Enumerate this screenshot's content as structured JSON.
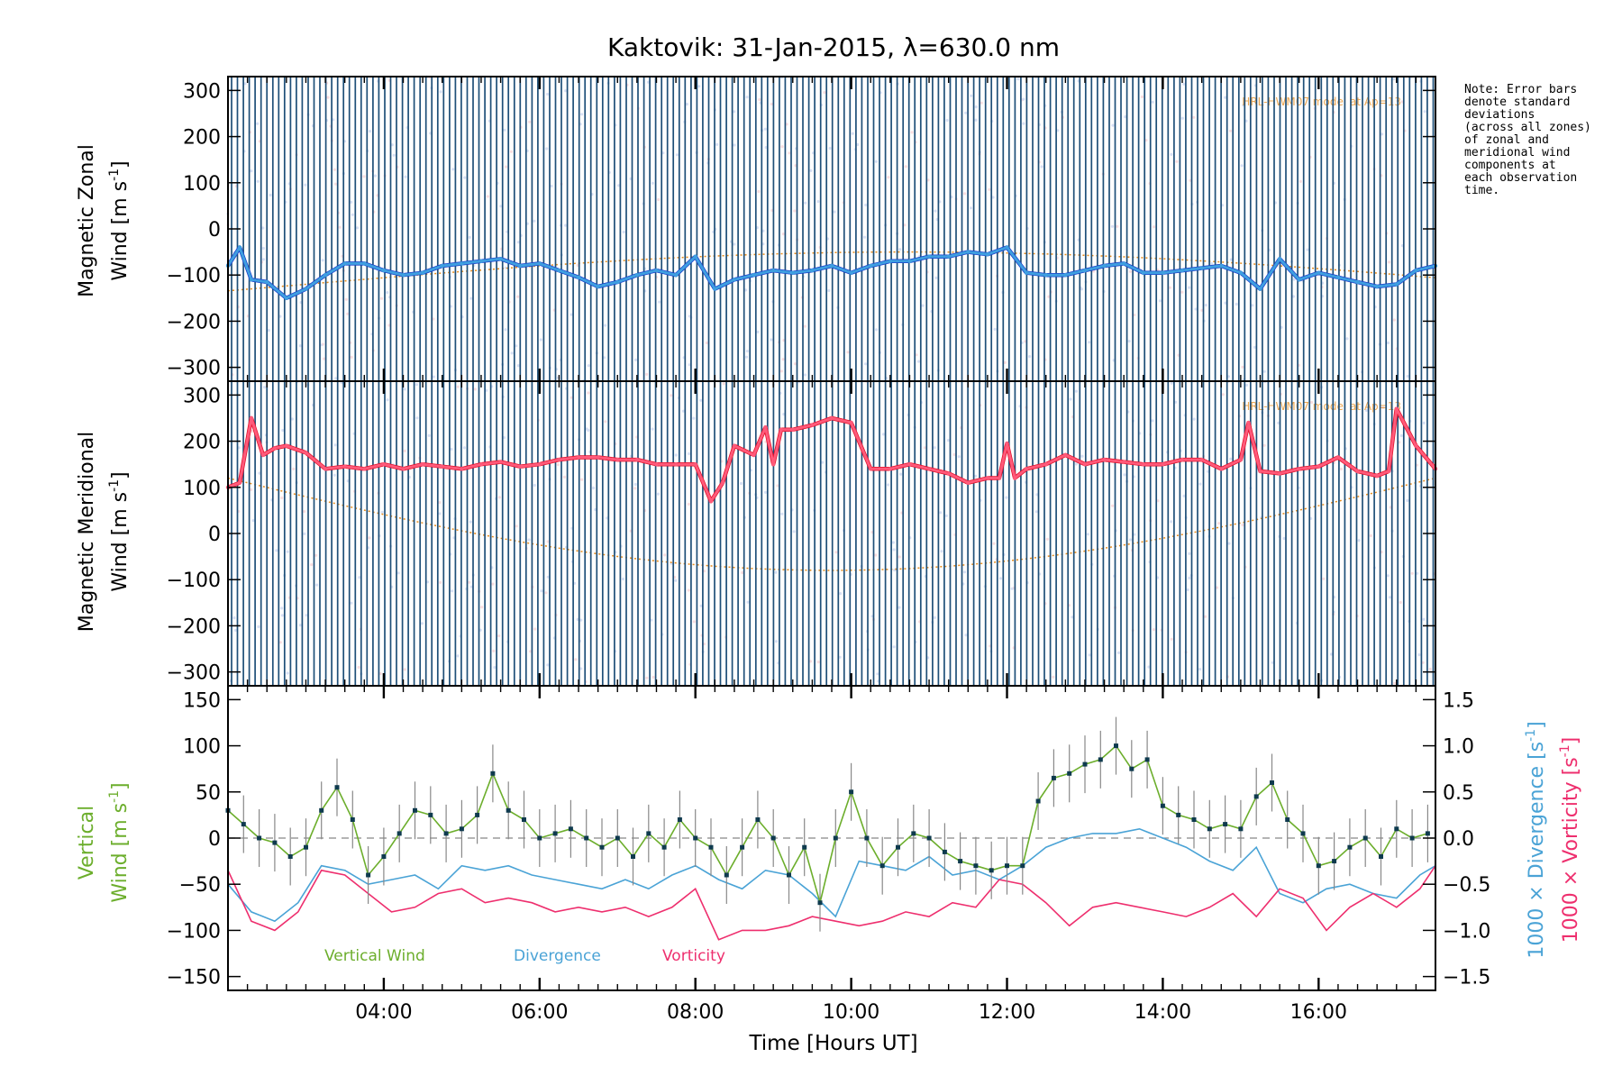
{
  "title": "Kaktovik: 31-Jan-2015, λ=630.0 nm",
  "note_lines": [
    "Note: Error bars",
    "denote standard",
    "deviations",
    "(across all zones)",
    "of zonal and",
    "meridional wind",
    "components at",
    "each observation",
    "time."
  ],
  "colors": {
    "zonal": "#3f9fe0",
    "zonal_dark": "#1a3fc8",
    "meridional": "#ff5a7a",
    "meridional_dark": "#e0102a",
    "errorbar": "#1e4f78",
    "vertical": "#6cae2c",
    "vertical_points": "#0e3a4e",
    "divergence": "#4aa3d6",
    "vorticity": "#ee2f6e",
    "hwm": "#e58a1a",
    "background_points": "#8fa8e0"
  },
  "chart_data": [
    {
      "type": "line",
      "panel": "zonal",
      "ylabel_line1": "Magnetic Zonal",
      "ylabel_line2": "Wind [m s",
      "ylabel_sup": "-1",
      "ylabel_end": "]",
      "hwm_label": "HRL-HWM07 model at Ap=13",
      "xlim": [
        2.0,
        17.5
      ],
      "ylim": [
        -330,
        330
      ],
      "yticks": [
        300,
        200,
        100,
        0,
        -100,
        -200,
        -300
      ],
      "errorbar_lo": -330,
      "errorbar_hi": 330,
      "x": [
        2.0,
        2.15,
        2.3,
        2.5,
        2.75,
        3.0,
        3.25,
        3.5,
        3.75,
        4.0,
        4.25,
        4.5,
        4.75,
        5.0,
        5.25,
        5.5,
        5.75,
        6.0,
        6.25,
        6.5,
        6.75,
        7.0,
        7.25,
        7.5,
        7.75,
        8.0,
        8.25,
        8.5,
        8.75,
        9.0,
        9.25,
        9.5,
        9.75,
        10.0,
        10.25,
        10.5,
        10.75,
        11.0,
        11.25,
        11.5,
        11.75,
        12.0,
        12.25,
        12.5,
        12.75,
        13.0,
        13.25,
        13.5,
        13.75,
        14.0,
        14.25,
        14.5,
        14.75,
        15.0,
        15.25,
        15.5,
        15.75,
        16.0,
        16.25,
        16.5,
        16.75,
        17.0,
        17.25,
        17.5
      ],
      "values": [
        -80,
        -40,
        -110,
        -115,
        -150,
        -130,
        -100,
        -75,
        -75,
        -90,
        -100,
        -95,
        -80,
        -75,
        -70,
        -65,
        -80,
        -75,
        -90,
        -105,
        -125,
        -115,
        -100,
        -90,
        -100,
        -60,
        -130,
        -110,
        -100,
        -90,
        -95,
        -90,
        -80,
        -95,
        -80,
        -70,
        -70,
        -60,
        -60,
        -50,
        -55,
        -40,
        -95,
        -100,
        -100,
        -90,
        -80,
        -75,
        -95,
        -95,
        -90,
        -85,
        -80,
        -95,
        -130,
        -65,
        -110,
        -95,
        -105,
        -115,
        -125,
        -120,
        -90,
        -80
      ]
    },
    {
      "type": "line",
      "panel": "meridional",
      "ylabel_line1": "Magnetic Meridional",
      "ylabel_line2": "Wind [m s",
      "ylabel_sup": "-1",
      "ylabel_end": "]",
      "hwm_label": "HRL-HWM07 model at Ap=13",
      "xlim": [
        2.0,
        17.5
      ],
      "ylim": [
        -330,
        330
      ],
      "yticks": [
        300,
        200,
        100,
        0,
        -100,
        -200,
        -300
      ],
      "errorbar_lo": -330,
      "errorbar_hi": 330,
      "x": [
        2.0,
        2.15,
        2.3,
        2.45,
        2.6,
        2.75,
        3.0,
        3.25,
        3.5,
        3.75,
        4.0,
        4.25,
        4.5,
        4.75,
        5.0,
        5.25,
        5.5,
        5.75,
        6.0,
        6.25,
        6.5,
        6.75,
        7.0,
        7.25,
        7.5,
        7.75,
        8.0,
        8.2,
        8.35,
        8.5,
        8.75,
        8.9,
        9.0,
        9.1,
        9.25,
        9.5,
        9.75,
        10.0,
        10.25,
        10.5,
        10.75,
        11.0,
        11.25,
        11.5,
        11.75,
        11.9,
        12.0,
        12.1,
        12.25,
        12.5,
        12.75,
        13.0,
        13.25,
        13.5,
        13.75,
        14.0,
        14.25,
        14.5,
        14.75,
        15.0,
        15.1,
        15.25,
        15.5,
        15.75,
        16.0,
        16.25,
        16.5,
        16.75,
        16.9,
        17.0,
        17.25,
        17.5
      ],
      "values": [
        100,
        110,
        250,
        170,
        185,
        190,
        175,
        140,
        145,
        140,
        150,
        140,
        150,
        145,
        140,
        150,
        155,
        145,
        150,
        160,
        165,
        165,
        160,
        160,
        150,
        150,
        150,
        70,
        110,
        190,
        170,
        230,
        150,
        225,
        225,
        235,
        250,
        240,
        140,
        140,
        150,
        140,
        130,
        110,
        120,
        120,
        195,
        120,
        140,
        150,
        170,
        150,
        160,
        155,
        150,
        150,
        160,
        160,
        140,
        160,
        240,
        135,
        130,
        140,
        145,
        165,
        135,
        125,
        135,
        270,
        190,
        140
      ]
    },
    {
      "type": "line",
      "panel": "vertical",
      "ylabel_line1": "Vertical",
      "ylabel_line2": "Wind [m s",
      "ylabel_sup": "-1",
      "ylabel_end": "]",
      "right_label_divergence": "1000 × Divergence [s",
      "right_label_vorticity": "1000 × Vorticity [s",
      "xlabel": "Time [Hours UT]",
      "xlim": [
        2.0,
        17.5
      ],
      "ylim": [
        -165,
        165
      ],
      "yticks": [
        150,
        100,
        50,
        0,
        -50,
        -100,
        -150
      ],
      "y2lim": [
        -1.65,
        1.65
      ],
      "y2ticks": [
        "1.5",
        "1.0",
        "0.5",
        "0.0",
        "-0.5",
        "-1.0",
        "-1.5"
      ],
      "xtick_values": [
        4,
        6,
        8,
        10,
        12,
        14,
        16
      ],
      "xtick_labels": [
        "04:00",
        "06:00",
        "08:00",
        "10:00",
        "12:00",
        "14:00",
        "16:00"
      ],
      "legend": [
        "Vertical Wind",
        "Divergence",
        "Vorticity"
      ],
      "vertical_wind": {
        "x": [
          2.0,
          2.2,
          2.4,
          2.6,
          2.8,
          3.0,
          3.2,
          3.4,
          3.6,
          3.8,
          4.0,
          4.2,
          4.4,
          4.6,
          4.8,
          5.0,
          5.2,
          5.4,
          5.6,
          5.8,
          6.0,
          6.2,
          6.4,
          6.6,
          6.8,
          7.0,
          7.2,
          7.4,
          7.6,
          7.8,
          8.0,
          8.2,
          8.4,
          8.6,
          8.8,
          9.0,
          9.2,
          9.4,
          9.6,
          9.8,
          10.0,
          10.2,
          10.4,
          10.6,
          10.8,
          11.0,
          11.2,
          11.4,
          11.6,
          11.8,
          12.0,
          12.2,
          12.4,
          12.6,
          12.8,
          13.0,
          13.2,
          13.4,
          13.6,
          13.8,
          14.0,
          14.2,
          14.4,
          14.6,
          14.8,
          15.0,
          15.2,
          15.4,
          15.6,
          15.8,
          16.0,
          16.2,
          16.4,
          16.6,
          16.8,
          17.0,
          17.2,
          17.4
        ],
        "values": [
          30,
          15,
          0,
          -5,
          -20,
          -10,
          30,
          55,
          20,
          -40,
          -20,
          5,
          30,
          25,
          5,
          10,
          25,
          70,
          30,
          20,
          0,
          5,
          10,
          0,
          -10,
          0,
          -20,
          5,
          -10,
          20,
          0,
          -10,
          -40,
          -10,
          20,
          0,
          -40,
          -10,
          -70,
          0,
          50,
          0,
          -30,
          -10,
          5,
          0,
          -15,
          -25,
          -30,
          -35,
          -30,
          -30,
          40,
          65,
          70,
          80,
          85,
          100,
          75,
          85,
          35,
          25,
          20,
          10,
          15,
          10,
          45,
          60,
          20,
          5,
          -30,
          -25,
          -10,
          0,
          -20,
          10,
          0,
          5
        ]
      },
      "divergence": {
        "x": [
          2.0,
          2.3,
          2.6,
          2.9,
          3.2,
          3.5,
          3.8,
          4.1,
          4.4,
          4.7,
          5.0,
          5.3,
          5.6,
          5.9,
          6.2,
          6.5,
          6.8,
          7.1,
          7.4,
          7.7,
          8.0,
          8.3,
          8.6,
          8.9,
          9.2,
          9.5,
          9.8,
          10.1,
          10.4,
          10.7,
          11.0,
          11.3,
          11.6,
          11.9,
          12.2,
          12.5,
          12.8,
          13.1,
          13.4,
          13.7,
          14.0,
          14.3,
          14.6,
          14.9,
          15.2,
          15.5,
          15.8,
          16.1,
          16.4,
          16.7,
          17.0,
          17.3,
          17.5
        ],
        "values": [
          -0.5,
          -0.8,
          -0.9,
          -0.7,
          -0.3,
          -0.35,
          -0.5,
          -0.45,
          -0.4,
          -0.55,
          -0.3,
          -0.35,
          -0.3,
          -0.4,
          -0.45,
          -0.5,
          -0.55,
          -0.45,
          -0.55,
          -0.4,
          -0.3,
          -0.45,
          -0.55,
          -0.35,
          -0.4,
          -0.6,
          -0.85,
          -0.25,
          -0.3,
          -0.35,
          -0.2,
          -0.4,
          -0.35,
          -0.45,
          -0.3,
          -0.1,
          0.0,
          0.05,
          0.05,
          0.1,
          0.0,
          -0.1,
          -0.25,
          -0.35,
          -0.1,
          -0.6,
          -0.7,
          -0.55,
          -0.5,
          -0.6,
          -0.65,
          -0.4,
          -0.3
        ]
      },
      "vorticity": {
        "x": [
          2.0,
          2.3,
          2.6,
          2.9,
          3.2,
          3.5,
          3.8,
          4.1,
          4.4,
          4.7,
          5.0,
          5.3,
          5.6,
          5.9,
          6.2,
          6.5,
          6.8,
          7.1,
          7.4,
          7.7,
          8.0,
          8.3,
          8.6,
          8.9,
          9.2,
          9.5,
          9.8,
          10.1,
          10.4,
          10.7,
          11.0,
          11.3,
          11.6,
          11.9,
          12.2,
          12.5,
          12.8,
          13.1,
          13.4,
          13.7,
          14.0,
          14.3,
          14.6,
          14.9,
          15.2,
          15.5,
          15.8,
          16.1,
          16.4,
          16.7,
          17.0,
          17.3,
          17.5
        ],
        "values": [
          -0.35,
          -0.9,
          -1.0,
          -0.8,
          -0.35,
          -0.4,
          -0.6,
          -0.8,
          -0.75,
          -0.6,
          -0.55,
          -0.7,
          -0.65,
          -0.7,
          -0.8,
          -0.75,
          -0.8,
          -0.75,
          -0.85,
          -0.75,
          -0.55,
          -1.1,
          -1.0,
          -1.0,
          -0.95,
          -0.85,
          -0.9,
          -0.95,
          -0.9,
          -0.8,
          -0.85,
          -0.7,
          -0.75,
          -0.45,
          -0.5,
          -0.7,
          -0.95,
          -0.75,
          -0.7,
          -0.75,
          -0.8,
          -0.85,
          -0.75,
          -0.6,
          -0.85,
          -0.55,
          -0.65,
          -1.0,
          -0.75,
          -0.6,
          -0.75,
          -0.55,
          -0.3
        ]
      }
    }
  ]
}
